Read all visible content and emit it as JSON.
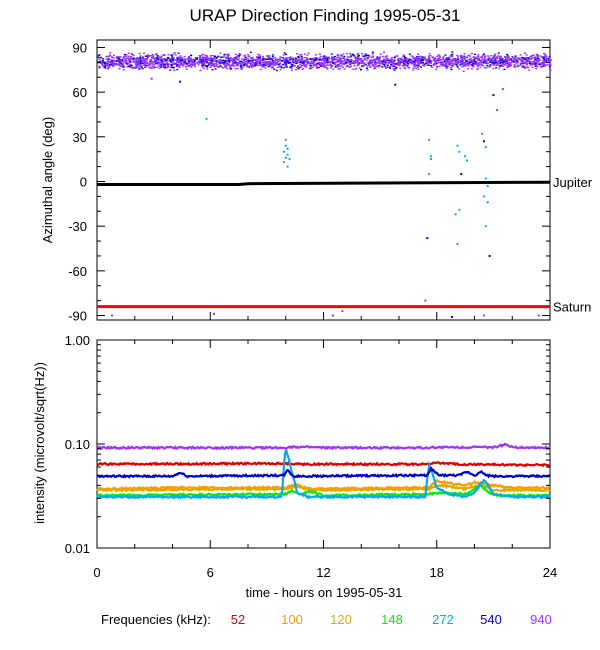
{
  "title": "URAP Direction Finding  1995-05-31",
  "chart_data": [
    {
      "type": "scatter",
      "ylabel": "Azimuthal angle (deg)",
      "ylim": [
        -93,
        95
      ],
      "xlim": [
        0,
        24
      ],
      "yticks": [
        "90",
        "60",
        "30",
        "0",
        "-30",
        "-60",
        "-90"
      ],
      "ytick_values": [
        90,
        60,
        30,
        0,
        -30,
        -60,
        -90
      ],
      "reference_lines": [
        {
          "name": "Jupiter",
          "color": "#000000",
          "points": [
            [
              0,
              -2
            ],
            [
              7.5,
              -2
            ],
            [
              8,
              -1.5
            ],
            [
              24,
              -0.5
            ]
          ]
        },
        {
          "name": "Saturn",
          "color": "#ff0000",
          "points": [
            [
              0,
              -84
            ],
            [
              24,
              -84
            ]
          ]
        }
      ],
      "band": {
        "y_center": 81,
        "y_spread": 7,
        "colors": [
          "#9933ff",
          "#9933ff",
          "#9933ff",
          "#0000cc"
        ]
      },
      "scatter_points": [
        {
          "x": 5.8,
          "y": 42,
          "color": "#00aaee"
        },
        {
          "x": 10.0,
          "y": 28,
          "color": "#00aaee"
        },
        {
          "x": 10.0,
          "y": 24,
          "color": "#00aaee"
        },
        {
          "x": 10.1,
          "y": 22,
          "color": "#00aaee"
        },
        {
          "x": 9.9,
          "y": 20,
          "color": "#00aaee"
        },
        {
          "x": 10.1,
          "y": 18,
          "color": "#00aaee"
        },
        {
          "x": 10.0,
          "y": 16,
          "color": "#00aaee"
        },
        {
          "x": 10.2,
          "y": 15,
          "color": "#00aaee"
        },
        {
          "x": 9.9,
          "y": 13,
          "color": "#00aaee"
        },
        {
          "x": 10.1,
          "y": 10,
          "color": "#00aaee"
        },
        {
          "x": 17.6,
          "y": 28,
          "color": "#00aaee"
        },
        {
          "x": 17.7,
          "y": 17,
          "color": "#00aaee"
        },
        {
          "x": 17.7,
          "y": 15,
          "color": "#00aaee"
        },
        {
          "x": 17.6,
          "y": 5,
          "color": "#00aaee"
        },
        {
          "x": 17.5,
          "y": -38,
          "color": "#0000cc"
        },
        {
          "x": 17.4,
          "y": -80,
          "color": "#9933ff"
        },
        {
          "x": 19.1,
          "y": 24,
          "color": "#00aaee"
        },
        {
          "x": 19.2,
          "y": 20,
          "color": "#00aaee"
        },
        {
          "x": 19.5,
          "y": 17,
          "color": "#00aaee"
        },
        {
          "x": 19.6,
          "y": 14,
          "color": "#00aaee"
        },
        {
          "x": 19.3,
          "y": 5,
          "color": "#0000cc"
        },
        {
          "x": 19.0,
          "y": -22,
          "color": "#00aaee"
        },
        {
          "x": 19.2,
          "y": -19,
          "color": "#00aaee"
        },
        {
          "x": 19.1,
          "y": -42,
          "color": "#00aaee"
        },
        {
          "x": 20.4,
          "y": 32,
          "color": "#00aaee"
        },
        {
          "x": 20.5,
          "y": 27,
          "color": "#0000cc"
        },
        {
          "x": 20.6,
          "y": 23,
          "color": "#00aaee"
        },
        {
          "x": 20.6,
          "y": 2,
          "color": "#00aaee"
        },
        {
          "x": 20.7,
          "y": -3,
          "color": "#00aaee"
        },
        {
          "x": 20.5,
          "y": -10,
          "color": "#00aaee"
        },
        {
          "x": 20.7,
          "y": -14,
          "color": "#00aaee"
        },
        {
          "x": 20.6,
          "y": -30,
          "color": "#00aaee"
        },
        {
          "x": 20.8,
          "y": -50,
          "color": "#0000cc"
        },
        {
          "x": 21.2,
          "y": 48,
          "color": "#9933ff"
        },
        {
          "x": 21.5,
          "y": 62,
          "color": "#9933ff"
        },
        {
          "x": 21.0,
          "y": 58,
          "color": "#0000cc"
        },
        {
          "x": 15.8,
          "y": 65,
          "color": "#0000cc"
        },
        {
          "x": 4.4,
          "y": 67,
          "color": "#0000cc"
        },
        {
          "x": 2.9,
          "y": 69,
          "color": "#9933ff"
        },
        {
          "x": 0.8,
          "y": -90,
          "color": "#9933ff"
        },
        {
          "x": 6.2,
          "y": -89,
          "color": "#9933ff"
        },
        {
          "x": 12.5,
          "y": -90,
          "color": "#9933ff"
        },
        {
          "x": 13.0,
          "y": -87,
          "color": "#9933ff"
        },
        {
          "x": 20.5,
          "y": -90,
          "color": "#9933ff"
        },
        {
          "x": 23.4,
          "y": -90,
          "color": "#9933ff"
        },
        {
          "x": 18.8,
          "y": -91,
          "color": "#0000cc"
        }
      ]
    },
    {
      "type": "line",
      "ylabel": "intensity (microvolt/sqrt(Hz))",
      "xlabel": "time - hours on 1995-05-31",
      "yscale": "log",
      "ylim": [
        0.01,
        1.0
      ],
      "xlim": [
        0,
        24
      ],
      "yticks": [
        "1.00",
        "0.10",
        "0.01"
      ],
      "ytick_values": [
        1.0,
        0.1,
        0.01
      ],
      "xticks": [
        "0",
        "6",
        "12",
        "18",
        "24"
      ],
      "xtick_values": [
        0,
        6,
        12,
        18,
        24
      ],
      "series": [
        {
          "name": "52",
          "color": "#dd0000",
          "x": [
            0,
            10,
            11,
            17.5,
            18,
            19,
            22,
            24
          ],
          "y": [
            0.064,
            0.065,
            0.064,
            0.064,
            0.066,
            0.064,
            0.063,
            0.063
          ]
        },
        {
          "name": "100",
          "color": "#ff9900",
          "x": [
            0,
            4,
            10,
            10.6,
            11,
            17.6,
            18,
            19.5,
            20,
            21,
            22,
            24
          ],
          "y": [
            0.037,
            0.038,
            0.038,
            0.041,
            0.037,
            0.038,
            0.044,
            0.04,
            0.043,
            0.04,
            0.038,
            0.038
          ]
        },
        {
          "name": "120",
          "color": "#ddaa00",
          "x": [
            0,
            10,
            10.8,
            11.5,
            17.6,
            18.2,
            19.5,
            20.4,
            21,
            24
          ],
          "y": [
            0.036,
            0.037,
            0.039,
            0.036,
            0.037,
            0.04,
            0.037,
            0.041,
            0.036,
            0.036
          ]
        },
        {
          "name": "148",
          "color": "#00ee00",
          "x": [
            0,
            10,
            10.3,
            10.8,
            11.3,
            12,
            17.6,
            18.1,
            19.6,
            20.3,
            20.8,
            21.2,
            24
          ],
          "y": [
            0.032,
            0.033,
            0.036,
            0.033,
            0.035,
            0.032,
            0.033,
            0.034,
            0.033,
            0.04,
            0.034,
            0.032,
            0.032
          ]
        },
        {
          "name": "272",
          "color": "#00aaee",
          "x": [
            0,
            9.8,
            10.0,
            10.3,
            10.6,
            11.2,
            12,
            17.4,
            17.6,
            18.0,
            18.6,
            19.4,
            20.0,
            20.5,
            21.0,
            22,
            24
          ],
          "y": [
            0.031,
            0.031,
            0.09,
            0.055,
            0.034,
            0.031,
            0.031,
            0.031,
            0.062,
            0.038,
            0.033,
            0.031,
            0.034,
            0.045,
            0.033,
            0.031,
            0.031
          ]
        },
        {
          "name": "540",
          "color": "#0000cc",
          "x": [
            0,
            4,
            4.4,
            4.8,
            9.9,
            10.1,
            10.4,
            17.5,
            17.7,
            18.1,
            19.2,
            19.6,
            20.0,
            20.4,
            20.6,
            21.0,
            24
          ],
          "y": [
            0.049,
            0.049,
            0.053,
            0.049,
            0.05,
            0.056,
            0.049,
            0.05,
            0.058,
            0.05,
            0.05,
            0.054,
            0.05,
            0.054,
            0.05,
            0.049,
            0.049
          ]
        },
        {
          "name": "940",
          "color": "#9933ff",
          "x": [
            0,
            10,
            10.3,
            12,
            17.5,
            18,
            21,
            21.6,
            22.2,
            24
          ],
          "y": [
            0.092,
            0.092,
            0.094,
            0.092,
            0.092,
            0.093,
            0.093,
            0.098,
            0.093,
            0.092
          ]
        }
      ]
    }
  ],
  "legend": {
    "label": "Frequencies (kHz):",
    "items": [
      {
        "text": "52",
        "color": "#dd0000"
      },
      {
        "text": "100",
        "color": "#ff9900"
      },
      {
        "text": "120",
        "color": "#ddaa00"
      },
      {
        "text": "148",
        "color": "#00ee00"
      },
      {
        "text": "272",
        "color": "#00aaee"
      },
      {
        "text": "540",
        "color": "#0000cc"
      },
      {
        "text": "940",
        "color": "#9933ff"
      }
    ]
  }
}
